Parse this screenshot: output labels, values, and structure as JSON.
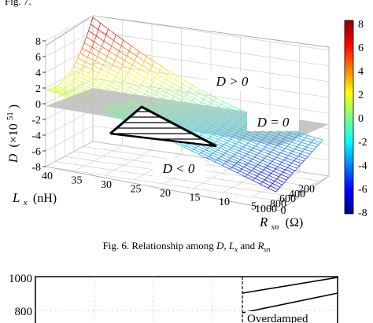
{
  "header": {
    "fragment": "Fig. 7."
  },
  "figure6": {
    "caption": {
      "prefix": "Fig. 6.   Relationship among ",
      "v1": "D",
      "sep1": ", ",
      "v2": "L",
      "v2sub": "x",
      "sep2": " and ",
      "v3": "R",
      "v3sub": "sn"
    },
    "chart_data": {
      "type": "surface3d",
      "z_axis": {
        "label": "D",
        "scale_label": "(×10",
        "scale_exp": "51",
        "scale_close": ")",
        "range": [
          -8,
          8
        ],
        "ticks": [
          -8,
          -6,
          -4,
          -2,
          0,
          2,
          4,
          6,
          8
        ]
      },
      "x_axis": {
        "label": "L",
        "label_sub": "x",
        "unit": "(nH)",
        "range": [
          0,
          1000
        ],
        "ticks": [
          0,
          200,
          400,
          600,
          800,
          1000
        ]
      },
      "y_axis": {
        "label": "R",
        "label_sub": "sn",
        "unit": "(Ω)",
        "range": [
          0,
          40
        ],
        "ticks": [
          0,
          5,
          10,
          15,
          20,
          25,
          30,
          35,
          40
        ]
      },
      "plane": {
        "z": 0
      },
      "annotations": [
        {
          "text": "D > 0"
        },
        {
          "text": "D = 0"
        },
        {
          "text": "D < 0"
        }
      ],
      "colorbar": {
        "ticks": [
          "8",
          "6",
          "4",
          "2",
          "0",
          "-2",
          "-4",
          "-6",
          "-8"
        ],
        "colors": [
          "#8b0000",
          "#ff0000",
          "#ff8000",
          "#ffff00",
          "#80ff80",
          "#00ffff",
          "#0080ff",
          "#0000ff",
          "#00008b"
        ]
      },
      "grid": true
    }
  },
  "figure7": {
    "chart_data": {
      "type": "line",
      "y_axis": {
        "ticks": [
          1000,
          800
        ]
      },
      "annotations": [
        {
          "text": "Overdamped"
        }
      ]
    }
  }
}
